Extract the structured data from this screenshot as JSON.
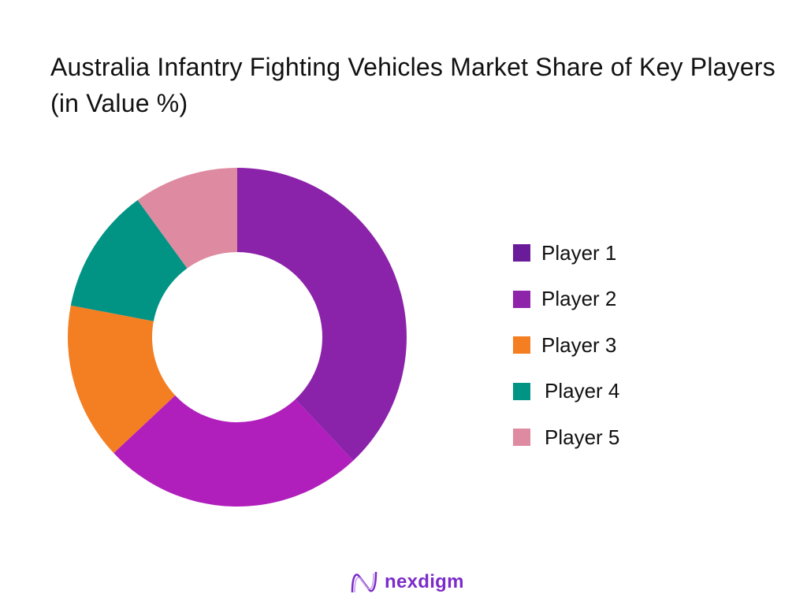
{
  "title": "Australia Infantry Fighting Vehicles Market Share of Key Players (in Value %)",
  "chart_data": {
    "type": "pie",
    "subtype": "donut",
    "title": "Australia Infantry Fighting Vehicles Market Share of Key Players (in Value %)",
    "categories": [
      "Player 1",
      "Player 2",
      "Player 3",
      "Player 4",
      "Player 5"
    ],
    "values": [
      38,
      25,
      15,
      12,
      10
    ],
    "unit": "%",
    "slice_colors": [
      "#8B22AA",
      "#B01FBB",
      "#F47E22",
      "#019485",
      "#DE8AA0"
    ],
    "legend_colors": [
      "#6A1B9A",
      "#8E24AA",
      "#F47E22",
      "#019485",
      "#DE8AA0"
    ],
    "legend_position": "right",
    "start_angle": "12 o'clock, clockwise"
  },
  "legend": {
    "items": [
      {
        "label": "Player 1",
        "color": "#6A1B9A"
      },
      {
        "label": "Player 2",
        "color": "#8E24AA"
      },
      {
        "label": "Player 3",
        "color": "#F47E22"
      },
      {
        "label": "Player 4",
        "color": "#019485"
      },
      {
        "label": "Player 5",
        "color": "#DE8AA0"
      }
    ]
  },
  "footer": {
    "brand": "nexdigm"
  }
}
